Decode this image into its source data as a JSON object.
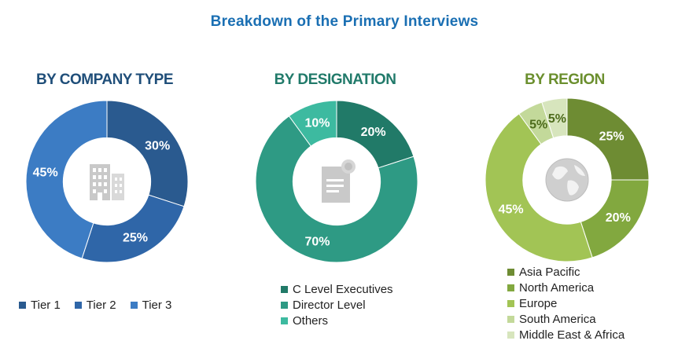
{
  "title": "Breakdown of the Primary Interviews",
  "chart_data": [
    {
      "type": "pie",
      "title": "BY COMPANY TYPE",
      "title_color": "#1f4e79",
      "categories": [
        "Tier 1",
        "Tier 2",
        "Tier 3"
      ],
      "values": [
        30,
        25,
        45
      ],
      "labels": [
        "30%",
        "25%",
        "45%"
      ],
      "colors": [
        "#2a5a8f",
        "#2f66a8",
        "#3c7cc4"
      ],
      "label_color": "#ffffff",
      "legend_position": "bottom"
    },
    {
      "type": "pie",
      "title": "BY DESIGNATION",
      "title_color": "#217a6a",
      "categories": [
        "C Level Executives",
        "Director Level",
        "Others"
      ],
      "values": [
        20,
        70,
        10
      ],
      "labels": [
        "20%",
        "70%",
        "10%"
      ],
      "colors": [
        "#217a68",
        "#2e9a84",
        "#3dbaa0"
      ],
      "label_color": "#ffffff",
      "legend_position": "bottom"
    },
    {
      "type": "pie",
      "title": "BY REGION",
      "title_color": "#6b8f2e",
      "categories": [
        "Asia Pacific",
        "North America",
        "Europe",
        "South America",
        "Middle East & Africa"
      ],
      "values": [
        25,
        20,
        45,
        5,
        5
      ],
      "labels": [
        "25%",
        "20%",
        "45%",
        "5%",
        "5%"
      ],
      "colors": [
        "#6e8c33",
        "#82a83f",
        "#a2c455",
        "#c3d99a",
        "#d7e5bd"
      ],
      "label_colors": [
        "#ffffff",
        "#ffffff",
        "#ffffff",
        "#4d6b1c",
        "#4d6b1c"
      ],
      "legend_position": "bottom"
    }
  ]
}
